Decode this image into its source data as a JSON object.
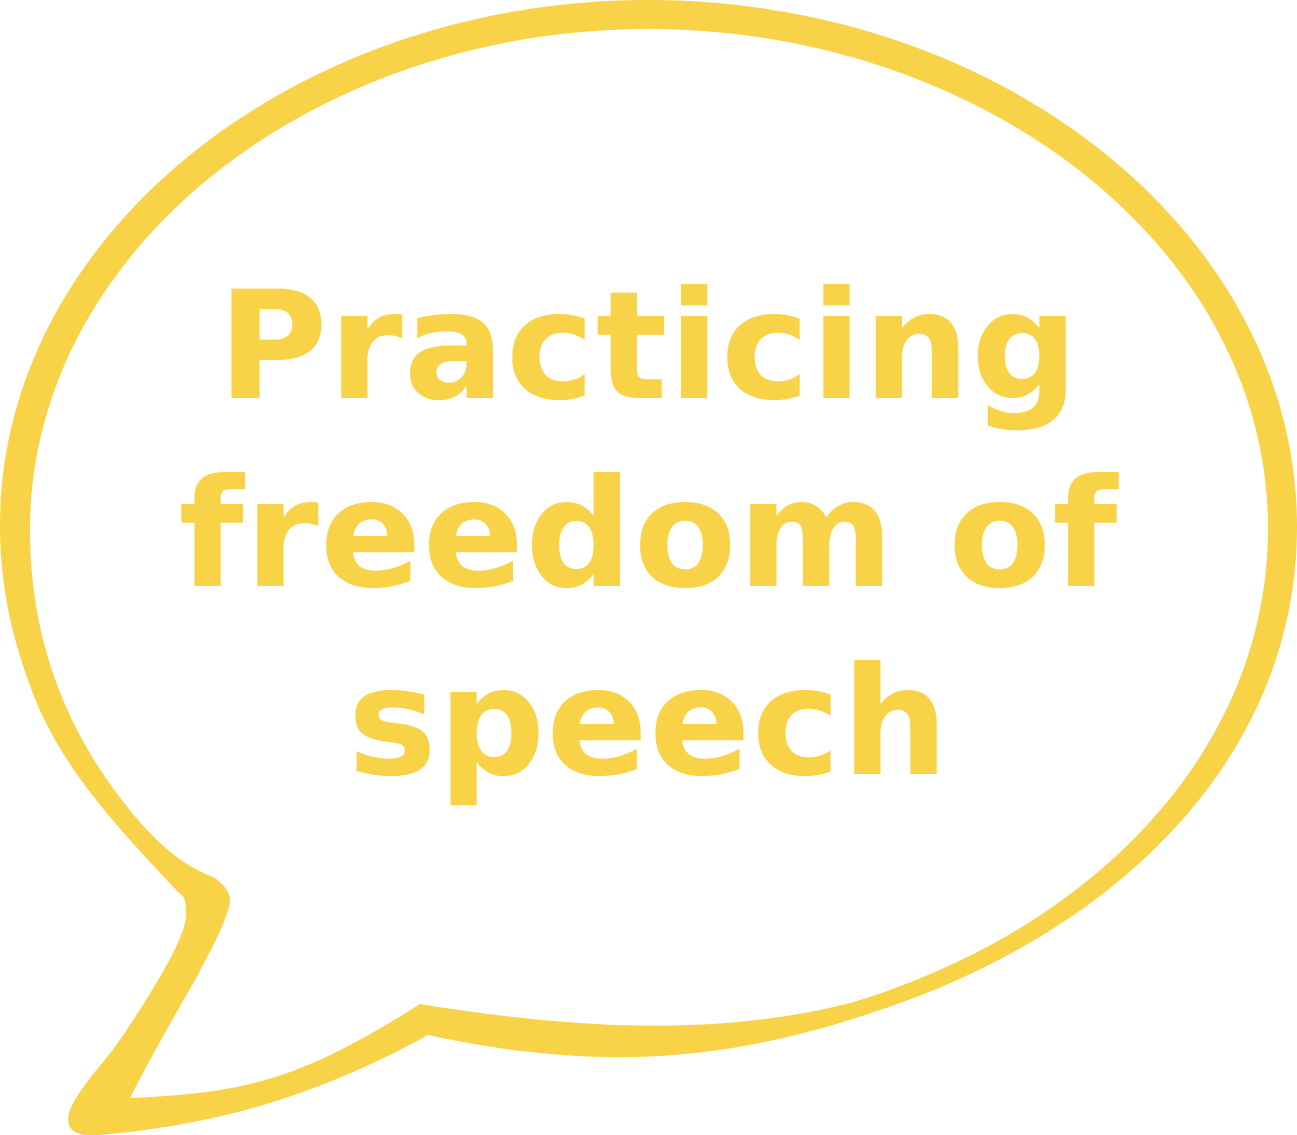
{
  "bubble": {
    "text_lines": [
      "Practicing",
      "freedom of",
      "speech"
    ],
    "color": "#F8D247",
    "background": "#ffffff",
    "shape": "speech-bubble"
  }
}
